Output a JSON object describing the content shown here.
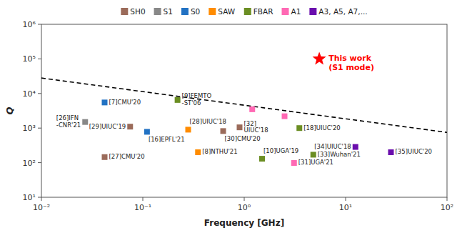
{
  "chart_data": {
    "type": "scatter",
    "xlabel": "Frequency [GHz]",
    "ylabel": "Q",
    "log": true,
    "xlim": [
      0.01,
      100
    ],
    "ylim": [
      10,
      1000000
    ],
    "xticks": [
      {
        "value": 0.01,
        "label": "10⁻²"
      },
      {
        "value": 0.1,
        "label": "10⁻¹"
      },
      {
        "value": 1,
        "label": "10⁰"
      },
      {
        "value": 10,
        "label": "10¹"
      },
      {
        "value": 100,
        "label": "10²"
      }
    ],
    "yticks": [
      {
        "value": 10,
        "label": "10¹"
      },
      {
        "value": 100,
        "label": "10²"
      },
      {
        "value": 1000,
        "label": "10³"
      },
      {
        "value": 10000,
        "label": "10⁴"
      },
      {
        "value": 100000,
        "label": "10⁵"
      },
      {
        "value": 1000000,
        "label": "10⁶"
      }
    ],
    "grid": false,
    "legend": "top",
    "series": [
      {
        "type": "line",
        "line_style": "dashed",
        "color": "black",
        "x": [
          0.01,
          100
        ],
        "values": [
          28000,
          750
        ]
      },
      {
        "name": "SH0",
        "color": "#9B6B5A",
        "marker": "square",
        "x": [
          0.042,
          0.075,
          0.62,
          0.9
        ],
        "values": [
          145,
          1100,
          820,
          1050
        ],
        "labels": [
          "[27]CMU'20",
          "[29]UIUC'19",
          "[30]CMU'20",
          "[32]\nUIUC'18"
        ]
      },
      {
        "name": "S1",
        "color": "#888888",
        "marker": "square",
        "x": [
          0.027
        ],
        "values": [
          1500
        ],
        "labels": [
          "[26]IFN\n-CNR'21"
        ]
      },
      {
        "name": "S0",
        "color": "#2272C3",
        "marker": "square",
        "x": [
          0.042,
          0.11
        ],
        "values": [
          5500,
          780
        ],
        "labels": [
          "[7]CMU'20",
          "[16]EPFL'21"
        ]
      },
      {
        "name": "SAW",
        "color": "#FF8C00",
        "marker": "square",
        "x": [
          0.28,
          0.35
        ],
        "values": [
          900,
          200
        ],
        "labels": [
          "[28]UIUC'18",
          "[8]NTHU'21"
        ]
      },
      {
        "name": "FBAR",
        "color": "#6B8E23",
        "marker": "square",
        "x": [
          0.22,
          1.5,
          3.5,
          4.8
        ],
        "values": [
          6500,
          130,
          1000,
          170
        ],
        "labels": [
          "[9]FEMTO\n-ST'06",
          "[10]UGA'19",
          "[18]UIUC'20",
          "[33]Wuhan'21"
        ]
      },
      {
        "name": "A1",
        "color": "#FF69B4",
        "marker": "square",
        "x": [
          1.2,
          2.5,
          3.1
        ],
        "values": [
          3500,
          2200,
          98
        ],
        "labels": [
          null,
          null,
          "[31]UGA'21"
        ]
      },
      {
        "name": "A3, A5, A7,...",
        "color": "#6A0DAD",
        "marker": "square",
        "x": [
          12.5,
          28.0
        ],
        "values": [
          285,
          200
        ],
        "labels": [
          "[34]UIUC'18",
          "[35]UIUC'20"
        ]
      }
    ],
    "annotations": [
      {
        "text": "This work\n(S1 mode)",
        "x": 5.5,
        "y": 100000,
        "color": "red",
        "marker": "star"
      }
    ]
  }
}
